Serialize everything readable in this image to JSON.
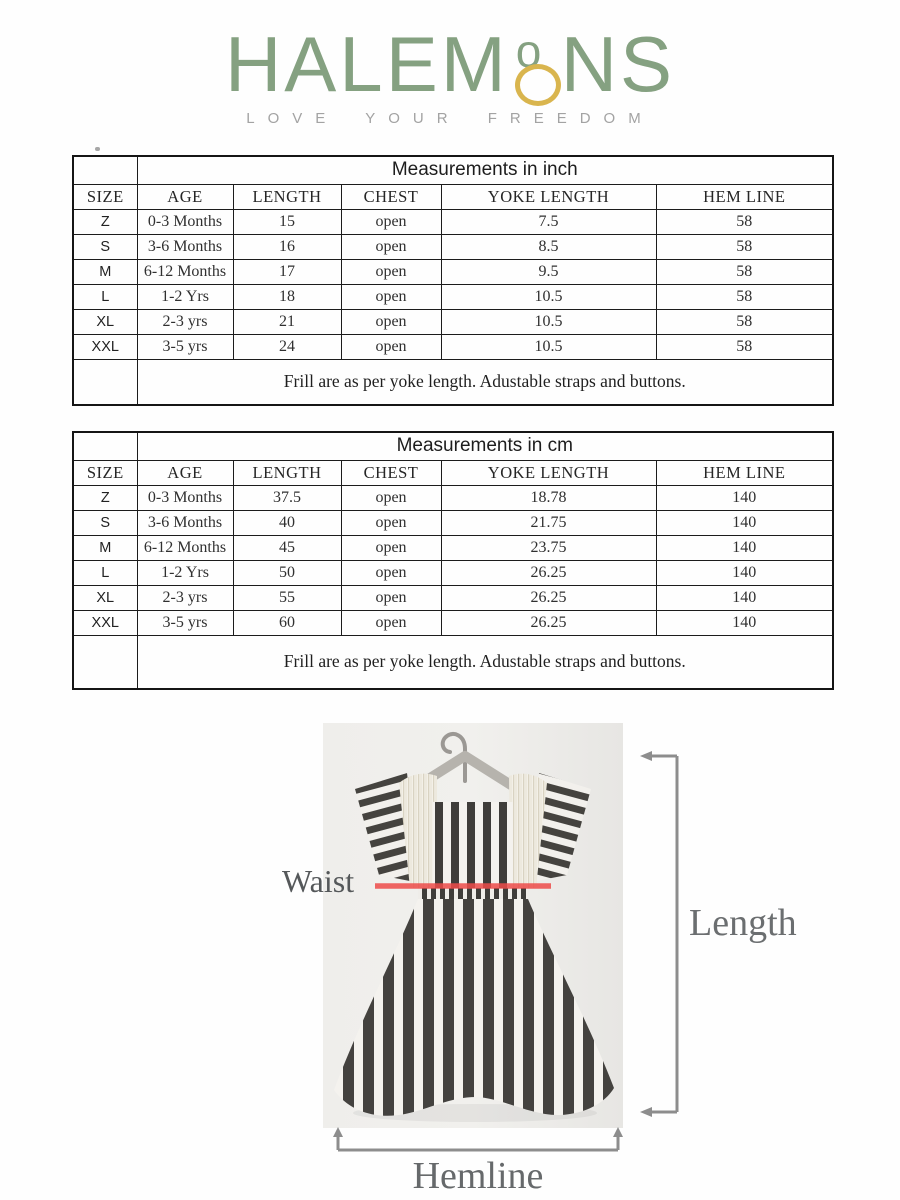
{
  "logo": {
    "word_start": "HALEM",
    "letter_o": "o",
    "word_end": "NS",
    "tagline": "LOVE YOUR FREEDOM",
    "brand_green": "#85a181",
    "ring_gold": "#d9b54e"
  },
  "tables": [
    {
      "title": "Measurements in inch",
      "columns": [
        "SIZE",
        "AGE",
        "LENGTH",
        "CHEST",
        "YOKE LENGTH",
        "HEM LINE"
      ],
      "rows": [
        [
          "Z",
          "0-3 Months",
          "15",
          "open",
          "7.5",
          "58"
        ],
        [
          "S",
          "3-6 Months",
          "16",
          "open",
          "8.5",
          "58"
        ],
        [
          "M",
          "6-12 Months",
          "17",
          "open",
          "9.5",
          "58"
        ],
        [
          "L",
          "1-2 Yrs",
          "18",
          "open",
          "10.5",
          "58"
        ],
        [
          "XL",
          "2-3 yrs",
          "21",
          "open",
          "10.5",
          "58"
        ],
        [
          "XXL",
          "3-5 yrs",
          "24",
          "open",
          "10.5",
          "58"
        ]
      ],
      "footnote": "Frill are as per yoke length. Adustable straps and buttons."
    },
    {
      "title": "Measurements in cm",
      "columns": [
        "SIZE",
        "AGE",
        "LENGTH",
        "CHEST",
        "YOKE LENGTH",
        "HEM LINE"
      ],
      "rows": [
        [
          "Z",
          "0-3 Months",
          "37.5",
          "open",
          "18.78",
          "140"
        ],
        [
          "S",
          "3-6 Months",
          "40",
          "open",
          "21.75",
          "140"
        ],
        [
          "M",
          "6-12 Months",
          "45",
          "open",
          "23.75",
          "140"
        ],
        [
          "L",
          "1-2 Yrs",
          "50",
          "open",
          "26.25",
          "140"
        ],
        [
          "XL",
          "2-3 yrs",
          "55",
          "open",
          "26.25",
          "140"
        ],
        [
          "XXL",
          "3-5 yrs",
          "60",
          "open",
          "26.25",
          "140"
        ]
      ],
      "footnote": "Frill are as per yoke length. Adustable straps and buttons."
    }
  ],
  "diagram": {
    "waist_label": "Waist",
    "length_label": "Length",
    "hemline_label": "Hemline",
    "waist_line_color": "#ee4c4a",
    "arrow_color": "#8d8d8d"
  }
}
